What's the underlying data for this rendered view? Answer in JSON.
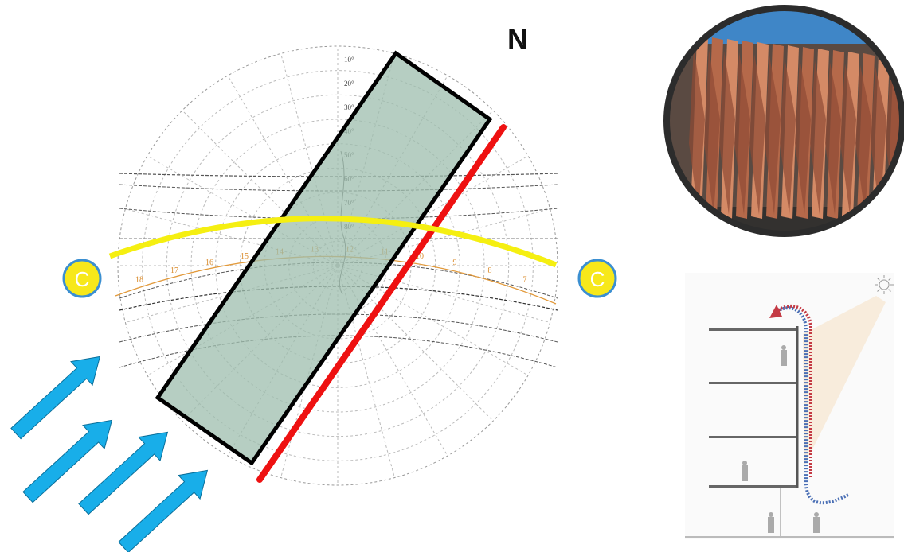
{
  "north": "N",
  "sides": {
    "left": "C",
    "right": "C"
  },
  "altitudes": [
    "10°",
    "20°",
    "30°",
    "40°",
    "50°",
    "60°",
    "70°",
    "80°"
  ],
  "hours": [
    "18",
    "17",
    "16",
    "15",
    "14",
    "13",
    "12",
    "11",
    "10",
    "9",
    "8",
    "7"
  ]
}
